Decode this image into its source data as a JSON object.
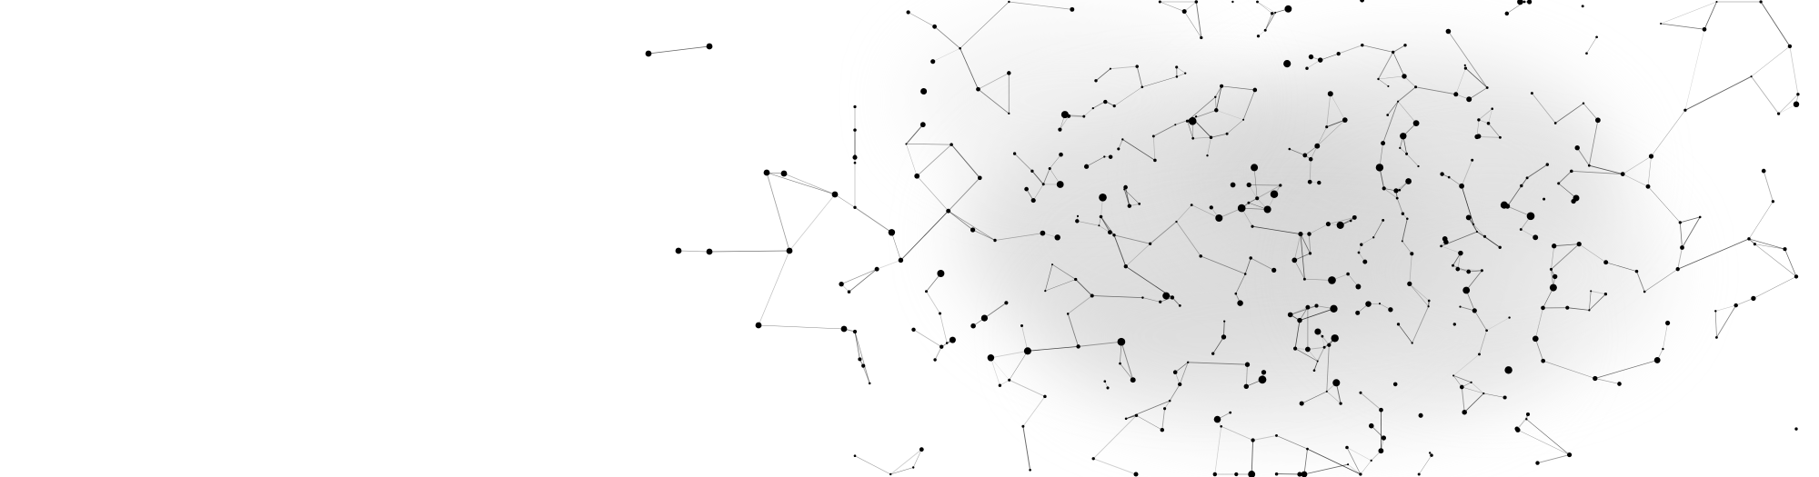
{
  "colors": {
    "background": "#ffffff",
    "node": "#000000",
    "edge": "#000000",
    "haze": "#e6e6e6"
  },
  "network": {
    "style": "plexus / connected-dots abstract background",
    "node_count_approx": 420
  }
}
